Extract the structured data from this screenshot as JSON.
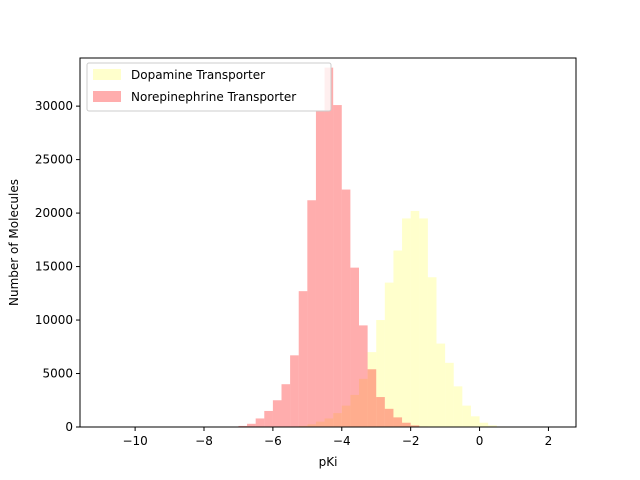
{
  "chart_data": {
    "type": "histogram",
    "title": "",
    "xlabel": "pKi",
    "ylabel": "Number of Molecules",
    "xlim": [
      -11.6,
      2.8
    ],
    "ylim": [
      0,
      34500
    ],
    "xticks": [
      -10,
      -8,
      -6,
      -4,
      -2,
      0,
      2
    ],
    "xtick_labels": [
      "−10",
      "−8",
      "−6",
      "−4",
      "−2",
      "0",
      "2"
    ],
    "yticks": [
      0,
      5000,
      10000,
      15000,
      20000,
      25000,
      30000
    ],
    "ytick_labels": [
      "0",
      "5000",
      "10000",
      "15000",
      "20000",
      "25000",
      "30000"
    ],
    "grid": false,
    "legend_position": "upper-left",
    "overlap_color": "#ff9966",
    "series": [
      {
        "name": "Dopamine Transporter",
        "color": "#ffff80",
        "alpha": 0.4,
        "bins": [
          [
            -5.25,
            -5.0,
            100
          ],
          [
            -5.0,
            -4.75,
            250
          ],
          [
            -4.75,
            -4.5,
            500
          ],
          [
            -4.5,
            -4.25,
            800
          ],
          [
            -4.25,
            -4.0,
            1300
          ],
          [
            -4.0,
            -3.75,
            2000
          ],
          [
            -3.75,
            -3.5,
            3000
          ],
          [
            -3.5,
            -3.25,
            4500
          ],
          [
            -3.25,
            -3.0,
            7000
          ],
          [
            -3.0,
            -2.75,
            10000
          ],
          [
            -2.75,
            -2.5,
            13500
          ],
          [
            -2.5,
            -2.25,
            16500
          ],
          [
            -2.25,
            -2.0,
            19500
          ],
          [
            -2.0,
            -1.75,
            20200
          ],
          [
            -1.75,
            -1.5,
            19500
          ],
          [
            -1.5,
            -1.25,
            14000
          ],
          [
            -1.25,
            -1.0,
            7800
          ],
          [
            -1.0,
            -0.75,
            6000
          ],
          [
            -0.75,
            -0.5,
            3800
          ],
          [
            -0.5,
            -0.25,
            2000
          ],
          [
            -0.25,
            0.0,
            1000
          ],
          [
            0.0,
            0.25,
            400
          ],
          [
            0.25,
            0.5,
            150
          ],
          [
            0.5,
            0.75,
            50
          ]
        ]
      },
      {
        "name": "Norepinephrine Transporter",
        "color": "#ff3333",
        "alpha": 0.4,
        "bins": [
          [
            -7.0,
            -6.75,
            100
          ],
          [
            -6.75,
            -6.5,
            300
          ],
          [
            -6.5,
            -6.25,
            800
          ],
          [
            -6.25,
            -6.0,
            1500
          ],
          [
            -6.0,
            -5.75,
            2500
          ],
          [
            -5.75,
            -5.5,
            4000
          ],
          [
            -5.5,
            -5.25,
            6700
          ],
          [
            -5.25,
            -5.0,
            12700
          ],
          [
            -5.0,
            -4.75,
            21200
          ],
          [
            -4.75,
            -4.5,
            29600
          ],
          [
            -4.5,
            -4.25,
            33600
          ],
          [
            -4.25,
            -4.0,
            30100
          ],
          [
            -4.0,
            -3.75,
            22200
          ],
          [
            -3.75,
            -3.5,
            14900
          ],
          [
            -3.5,
            -3.25,
            9500
          ],
          [
            -3.25,
            -3.0,
            5400
          ],
          [
            -3.0,
            -2.75,
            2800
          ],
          [
            -2.75,
            -2.5,
            1700
          ],
          [
            -2.5,
            -2.25,
            900
          ],
          [
            -2.25,
            -2.0,
            400
          ],
          [
            -2.0,
            -1.75,
            150
          ],
          [
            -1.75,
            -1.5,
            50
          ]
        ]
      }
    ]
  }
}
